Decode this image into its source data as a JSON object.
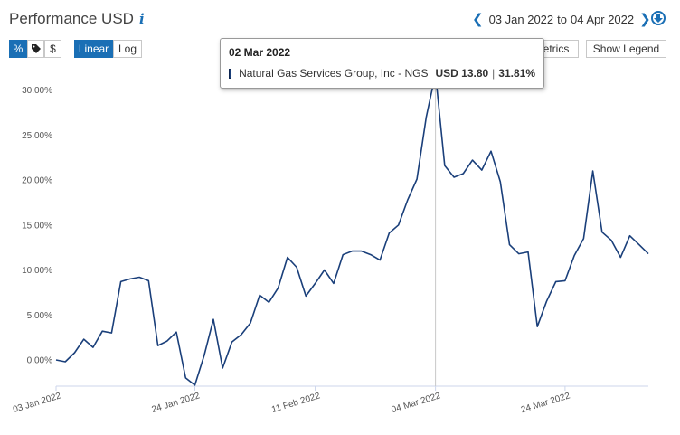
{
  "header": {
    "title": "Performance USD",
    "info_icon": "info-icon",
    "date_from": "03 Jan 2022",
    "date_sep": "to",
    "date_to": "04 Apr 2022"
  },
  "controls": {
    "percent_label": "%",
    "tag_label": "tag-icon",
    "dollar_label": "$",
    "linear_label": "Linear",
    "log_label": "Log",
    "plot_metrics_label": "Plot Metrics",
    "show_legend_label": "Show Legend",
    "accent": "#1a6fb5"
  },
  "tooltip": {
    "date": "02 Mar 2022",
    "series": "Natural Gas Services Group, Inc - NGS",
    "price": "USD 13.80",
    "sep": "|",
    "pct": "31.81%"
  },
  "chart_data": {
    "type": "line",
    "series": [
      {
        "name": "Natural Gas Services Group, Inc - NGS",
        "color": "#1a3f7a",
        "y": [
          0.0,
          -0.2,
          0.8,
          2.3,
          1.4,
          3.2,
          3.0,
          8.7,
          9.0,
          9.2,
          8.8,
          1.6,
          2.1,
          3.1,
          -2.0,
          -2.8,
          0.5,
          4.5,
          -0.9,
          2.0,
          2.8,
          4.1,
          7.2,
          6.4,
          8.0,
          11.4,
          10.3,
          7.1,
          8.5,
          10.0,
          8.5,
          11.7,
          12.1,
          12.1,
          11.7,
          11.1,
          14.1,
          15.0,
          17.8,
          20.1,
          27.0,
          31.81,
          21.6,
          20.3,
          20.7,
          22.2,
          21.1,
          23.2,
          19.8,
          12.8,
          11.8,
          12.0,
          3.7,
          6.5,
          8.7,
          8.8,
          11.6,
          13.5,
          21.0,
          14.2,
          13.3,
          11.4,
          13.8,
          12.8,
          11.8
        ]
      }
    ],
    "x_ticks": [
      "03 Jan 2022",
      "24 Jan 2022",
      "11 Feb 2022",
      "04 Mar 2022",
      "24 Mar 2022"
    ],
    "y_ticks": [
      "0.00%",
      "5.00%",
      "10.00%",
      "15.00%",
      "20.00%",
      "25.00%",
      "30.00%"
    ],
    "ylim": [
      -3,
      32
    ],
    "highlight_index": 41,
    "grid": false,
    "legend": "hidden"
  }
}
